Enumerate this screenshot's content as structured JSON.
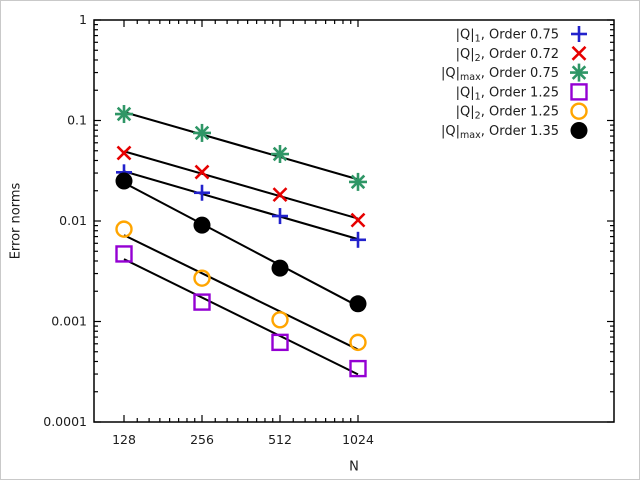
{
  "chart_data": {
    "type": "scatter",
    "title": "",
    "xlabel": "N",
    "ylabel": "Error norms",
    "x_scale": "log2",
    "y_scale": "log10",
    "xlim": [
      98,
      10000
    ],
    "ylim": [
      0.0001,
      1
    ],
    "grid": false,
    "legend_position": "top-right-inside",
    "x_ticks": [
      128,
      256,
      512,
      1024
    ],
    "x_tick_labels": [
      "128",
      "256",
      "512",
      "1024"
    ],
    "y_ticks": [
      1,
      0.1,
      0.01,
      0.001,
      0.0001
    ],
    "y_tick_labels": [
      "1",
      "0.1",
      "0.01",
      "0.001",
      "0.0001"
    ],
    "x": [
      128,
      256,
      512,
      1024
    ],
    "fit_line_color": "#000000",
    "series": [
      {
        "name": "Q1-order-0.75",
        "legend": {
          "prefix": "|Q|",
          "sub": "1",
          "suffix": ", Order 0.75"
        },
        "marker": "plus",
        "color": "#2222cc",
        "values": [
          0.0305,
          0.0191,
          0.0112,
          0.0065
        ],
        "fit_line": true
      },
      {
        "name": "Q2-order-0.72",
        "legend": {
          "prefix": "|Q|",
          "sub": "2",
          "suffix": ", Order 0.72"
        },
        "marker": "cross",
        "color": "#e60000",
        "values": [
          0.0475,
          0.0307,
          0.0183,
          0.0102
        ],
        "fit_line": true
      },
      {
        "name": "Qmax-order-0.75",
        "legend": {
          "prefix": "|Q|",
          "sub": "max",
          "suffix": ", Order 0.75"
        },
        "marker": "asterisk",
        "color": "#2f9666",
        "values": [
          0.116,
          0.0752,
          0.0464,
          0.0245
        ],
        "fit_line": true
      },
      {
        "name": "Q1-order-1.25",
        "legend": {
          "prefix": "|Q|",
          "sub": "1",
          "suffix": ", Order 1.25"
        },
        "marker": "square-open",
        "color": "#9400d3",
        "values": [
          0.0047,
          0.00156,
          0.00062,
          0.00034
        ],
        "fit_line": true
      },
      {
        "name": "Q2-order-1.25",
        "legend": {
          "prefix": "|Q|",
          "sub": "2",
          "suffix": ", Order 1.25"
        },
        "marker": "circle-open",
        "color": "#ffa500",
        "values": [
          0.0083,
          0.0027,
          0.00104,
          0.00062
        ],
        "fit_line": true
      },
      {
        "name": "Qmax-order-1.35",
        "legend": {
          "prefix": "|Q|",
          "sub": "max",
          "suffix": ", Order 1.35"
        },
        "marker": "circle-filled",
        "color": "#000000",
        "values": [
          0.025,
          0.0091,
          0.0034,
          0.0015
        ],
        "fit_line": true
      }
    ]
  }
}
